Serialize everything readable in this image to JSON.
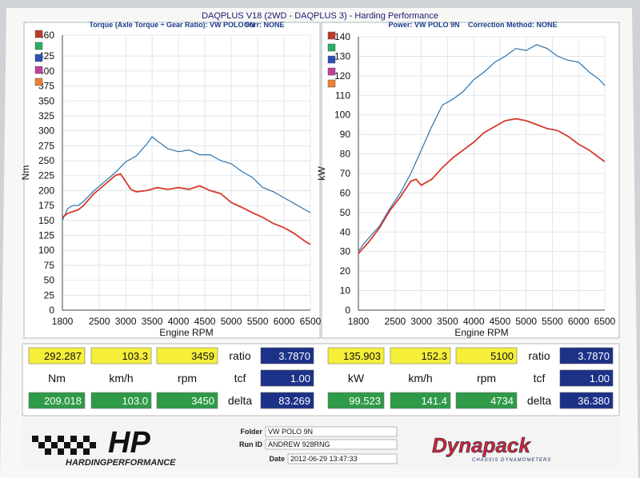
{
  "header": {
    "title": "DAQPLUS V18 (2WD - DAQPLUS 3) - Harding Performance"
  },
  "chart_data": [
    {
      "type": "line",
      "title": "Torque (Axle Torque ÷ Gear Ratio): VW POLO 9N",
      "corr": "Corr: NONE",
      "xlabel": "Engine RPM",
      "ylabel": "Nm",
      "xlim": [
        1800,
        6500
      ],
      "ylim": [
        0,
        460
      ],
      "xticks": [
        1800,
        2500,
        3000,
        3500,
        4000,
        4500,
        5000,
        5500,
        6000,
        6500
      ],
      "yticks": [
        0,
        25,
        50,
        75,
        100,
        125,
        150,
        175,
        200,
        225,
        250,
        275,
        300,
        325,
        350,
        375,
        400,
        425,
        460
      ],
      "legend_swatches": [
        "#c0392b",
        "#27ae60",
        "#2e4fb5",
        "#c0409b",
        "#f08030"
      ],
      "grid": true,
      "series": [
        {
          "color": "#2a73b0",
          "x": [
            1800,
            1900,
            2000,
            2100,
            2200,
            2400,
            2600,
            2800,
            3000,
            3200,
            3400,
            3500,
            3600,
            3800,
            4000,
            4200,
            4400,
            4600,
            4800,
            5000,
            5200,
            5400,
            5600,
            5800,
            6000,
            6200,
            6400,
            6500
          ],
          "y": [
            150,
            170,
            175,
            175,
            182,
            200,
            215,
            230,
            248,
            258,
            278,
            290,
            283,
            270,
            265,
            268,
            260,
            260,
            250,
            245,
            232,
            222,
            205,
            198,
            188,
            178,
            168,
            163
          ]
        },
        {
          "color": "#d63a2a",
          "x": [
            1800,
            1900,
            2000,
            2100,
            2200,
            2400,
            2600,
            2800,
            2900,
            3000,
            3100,
            3200,
            3400,
            3600,
            3800,
            4000,
            4200,
            4400,
            4600,
            4800,
            5000,
            5200,
            5400,
            5600,
            5800,
            6000,
            6200,
            6400,
            6500
          ],
          "y": [
            155,
            162,
            165,
            168,
            175,
            195,
            210,
            225,
            228,
            215,
            202,
            198,
            200,
            205,
            202,
            205,
            202,
            208,
            200,
            195,
            180,
            172,
            163,
            155,
            145,
            138,
            128,
            115,
            110
          ]
        }
      ]
    },
    {
      "type": "line",
      "title": "Power: VW POLO 9N",
      "corr": "Correction Method: NONE",
      "xlabel": "Engine RPM",
      "ylabel": "kW",
      "xlim": [
        1800,
        6500
      ],
      "ylim": [
        0,
        140
      ],
      "xticks": [
        1800,
        2500,
        3000,
        3500,
        4000,
        4500,
        5000,
        5500,
        6000,
        6500
      ],
      "yticks": [
        0,
        10,
        20,
        30,
        40,
        50,
        60,
        70,
        80,
        90,
        100,
        110,
        120,
        130,
        140
      ],
      "legend_swatches": [
        "#c0392b",
        "#27ae60",
        "#2e4fb5",
        "#c0409b",
        "#f08030"
      ],
      "grid": true,
      "series": [
        {
          "color": "#2a73b0",
          "x": [
            1800,
            1900,
            2000,
            2200,
            2400,
            2600,
            2800,
            3000,
            3200,
            3400,
            3600,
            3800,
            4000,
            4200,
            4400,
            4600,
            4800,
            5000,
            5200,
            5400,
            5600,
            5800,
            6000,
            6200,
            6400,
            6500
          ],
          "y": [
            30,
            34,
            37,
            43,
            52,
            60,
            70,
            82,
            94,
            105,
            108,
            112,
            118,
            122,
            127,
            130,
            134,
            133,
            136,
            134,
            130,
            128,
            127,
            122,
            118,
            115
          ]
        },
        {
          "color": "#d63a2a",
          "x": [
            1800,
            1900,
            2000,
            2200,
            2400,
            2600,
            2800,
            2900,
            3000,
            3200,
            3400,
            3600,
            3800,
            4000,
            4200,
            4400,
            4600,
            4800,
            5000,
            5200,
            5400,
            5600,
            5800,
            6000,
            6200,
            6400,
            6500
          ],
          "y": [
            29,
            32,
            35,
            42,
            51,
            58,
            66,
            67,
            64,
            67,
            73,
            78,
            82,
            86,
            91,
            94,
            97,
            98,
            97,
            95,
            93,
            92,
            89,
            85,
            82,
            78,
            76
          ]
        }
      ]
    }
  ],
  "readouts": [
    {
      "v1": "292.287",
      "v2": "103.3",
      "v3": "3459",
      "label1": "ratio",
      "r1": "3.7870",
      "u1": "Nm",
      "u2": "km/h",
      "u3": "rpm",
      "label2": "tcf",
      "r2": "1.00",
      "w1": "209.018",
      "w2": "103.0",
      "w3": "3450",
      "label3": "delta",
      "r3": "83.269"
    },
    {
      "v1": "135.903",
      "v2": "152.3",
      "v3": "5100",
      "label1": "ratio",
      "r1": "3.7870",
      "u1": "kW",
      "u2": "km/h",
      "u3": "rpm",
      "label2": "tcf",
      "r2": "1.00",
      "w1": "99.523",
      "w2": "141.4",
      "w3": "4734",
      "label3": "delta",
      "r3": "36.380"
    }
  ],
  "footer": {
    "hp_logo": "HP",
    "hp_text": "HARDINGPERFORMANCE",
    "folder_label": "Folder",
    "folder_value": "VW POLO 9N",
    "runid_label": "Run ID",
    "runid_value": "ANDREW 928RNG",
    "date_label": "Date",
    "date_value": "2012-06-29 13:47:33",
    "dyna_logo": "Dynapack",
    "dyna_sub": "CHASSIS DYNAMOMETERS"
  }
}
